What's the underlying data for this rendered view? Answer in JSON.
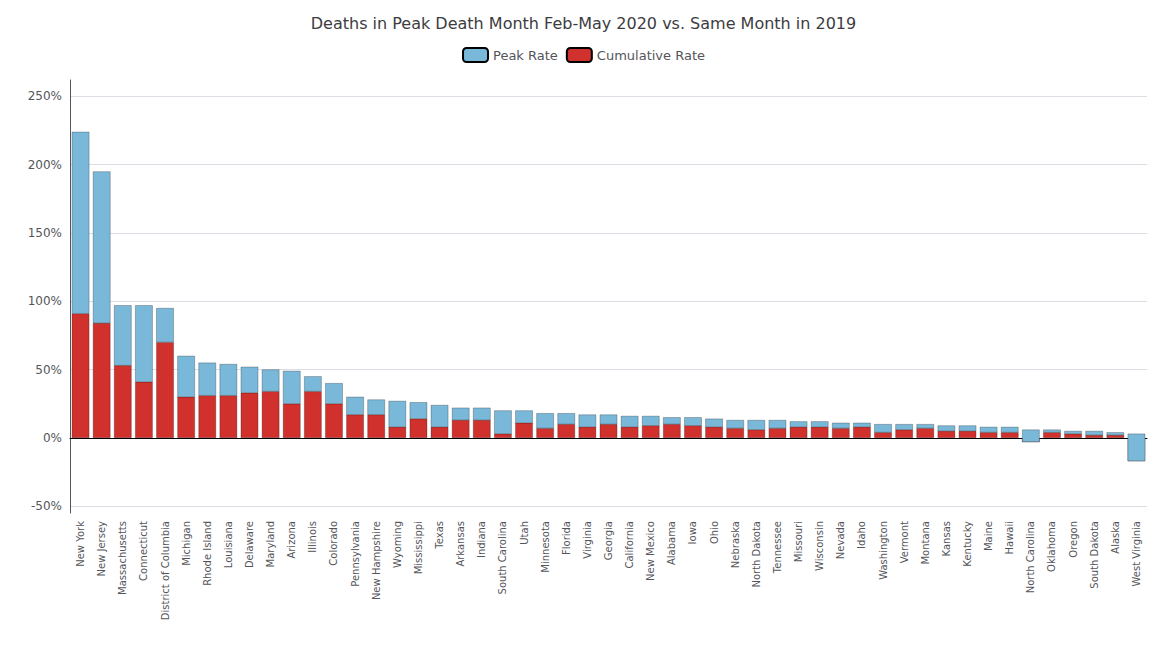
{
  "chart_data": {
    "type": "bar",
    "title": "Deaths in Peak Death Month Feb-May 2020 vs. Same Month in 2019",
    "stacked": true,
    "grid": true,
    "legend": "top",
    "categories": [
      "New York",
      "New Jersey",
      "Massachusetts",
      "Connecticut",
      "District of Columbia",
      "Michigan",
      "Rhode Island",
      "Louisiana",
      "Delaware",
      "Maryland",
      "Arizona",
      "Illinois",
      "Colorado",
      "Pennsylvania",
      "New Hampshire",
      "Wyoming",
      "Mississippi",
      "Texas",
      "Arkansas",
      "Indiana",
      "South Carolina",
      "Utah",
      "Minnesota",
      "Florida",
      "Virginia",
      "Georgia",
      "California",
      "New Mexico",
      "Alabama",
      "Iowa",
      "Ohio",
      "Nebraska",
      "North Dakota",
      "Tennessee",
      "Missouri",
      "Wisconsin",
      "Nevada",
      "Idaho",
      "Washington",
      "Vermont",
      "Montana",
      "Kansas",
      "Kentucky",
      "Maine",
      "Hawaii",
      "North Carolina",
      "Oklahoma",
      "Oregon",
      "South Dakota",
      "Alaska",
      "West Virginia"
    ],
    "series": [
      {
        "name": "Cumulative Rate",
        "color": "#d0312d",
        "values": [
          0.91,
          0.84,
          0.53,
          0.41,
          0.7,
          0.3,
          0.31,
          0.31,
          0.33,
          0.34,
          0.25,
          0.34,
          0.25,
          0.17,
          0.17,
          0.08,
          0.14,
          0.08,
          0.13,
          0.13,
          0.03,
          0.11,
          0.07,
          0.1,
          0.08,
          0.1,
          0.08,
          0.09,
          0.1,
          0.09,
          0.08,
          0.07,
          0.06,
          0.07,
          0.08,
          0.08,
          0.07,
          0.08,
          0.04,
          0.06,
          0.07,
          0.05,
          0.05,
          0.04,
          0.04,
          -0.03,
          0.04,
          0.03,
          0.02,
          0.02,
          -0.17
        ]
      },
      {
        "name": "Peak Rate",
        "color": "#7ab8d9",
        "values": [
          1.33,
          1.11,
          0.44,
          0.56,
          0.25,
          0.3,
          0.24,
          0.23,
          0.19,
          0.16,
          0.24,
          0.11,
          0.15,
          0.13,
          0.11,
          0.19,
          0.12,
          0.16,
          0.09,
          0.09,
          0.17,
          0.09,
          0.11,
          0.08,
          0.09,
          0.07,
          0.08,
          0.07,
          0.05,
          0.06,
          0.06,
          0.06,
          0.07,
          0.06,
          0.04,
          0.04,
          0.04,
          0.03,
          0.06,
          0.04,
          0.03,
          0.04,
          0.04,
          0.04,
          0.04,
          0.09,
          0.02,
          0.02,
          0.03,
          0.02,
          0.2
        ]
      }
    ],
    "ylim": [
      -0.55,
      2.62
    ],
    "yticks": [
      {
        "value": -0.5,
        "label": "-50%"
      },
      {
        "value": 0.0,
        "label": "0%"
      },
      {
        "value": 0.5,
        "label": "50%"
      },
      {
        "value": 1.0,
        "label": "100%"
      },
      {
        "value": 1.5,
        "label": "150%"
      },
      {
        "value": 2.0,
        "label": "200%"
      },
      {
        "value": 2.5,
        "label": "250%"
      }
    ]
  }
}
